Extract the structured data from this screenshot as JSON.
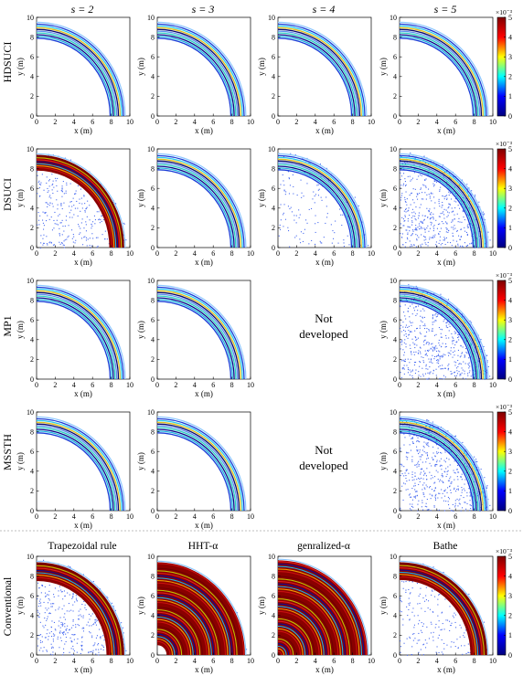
{
  "figure": {
    "col_headers": [
      "s = 2",
      "s = 3",
      "s = 4",
      "s = 5"
    ],
    "row_labels": [
      "HDSUCI",
      "DSUCI",
      "MP1",
      "MSSTH",
      "Conventional"
    ],
    "conventional_titles": [
      "Trapezoidal rule",
      "HHT-α",
      "genralized-α",
      "Bathe"
    ],
    "not_developed_text": [
      "Not",
      "developed"
    ],
    "xlabel": "x (m)",
    "ylabel": "y (m)",
    "xticks": [
      "0",
      "2",
      "4",
      "6",
      "8",
      "10"
    ],
    "yticks": [
      "0",
      "2",
      "4",
      "6",
      "8",
      "10"
    ],
    "colorbar": {
      "exponent": "×10⁻³",
      "ticks": [
        "0",
        "1",
        "2",
        "3",
        "4",
        "5"
      ],
      "range": [
        0,
        5
      ],
      "colormap": "jet",
      "stops": [
        "#00007f",
        "#0000ff",
        "#00ffff",
        "#ffff00",
        "#ff0000",
        "#7f0000"
      ]
    }
  },
  "chart_data": {
    "type": "heatmap",
    "description_axes": {
      "x_range": [
        0,
        10
      ],
      "y_range": [
        0,
        10
      ]
    },
    "panels": [
      {
        "row": 0,
        "col": 0,
        "ring": [
          7.8,
          9.4
        ],
        "noise": 0.0,
        "intensity": "low"
      },
      {
        "row": 0,
        "col": 1,
        "ring": [
          7.8,
          9.4
        ],
        "noise": 0.0,
        "intensity": "low"
      },
      {
        "row": 0,
        "col": 2,
        "ring": [
          7.8,
          9.4
        ],
        "noise": 0.0,
        "intensity": "low"
      },
      {
        "row": 0,
        "col": 3,
        "ring": [
          7.8,
          9.4
        ],
        "noise": 0.0,
        "intensity": "low"
      },
      {
        "row": 1,
        "col": 0,
        "ring": [
          7.8,
          9.4
        ],
        "noise": 0.55,
        "intensity": "high"
      },
      {
        "row": 1,
        "col": 1,
        "ring": [
          7.8,
          9.4
        ],
        "noise": 0.0,
        "intensity": "low"
      },
      {
        "row": 1,
        "col": 2,
        "ring": [
          7.8,
          9.4
        ],
        "noise": 0.25,
        "intensity": "low"
      },
      {
        "row": 1,
        "col": 3,
        "ring": [
          7.8,
          9.4
        ],
        "noise": 0.9,
        "intensity": "low"
      },
      {
        "row": 2,
        "col": 0,
        "ring": [
          7.8,
          9.4
        ],
        "noise": 0.0,
        "intensity": "low"
      },
      {
        "row": 2,
        "col": 1,
        "ring": [
          7.8,
          9.4
        ],
        "noise": 0.0,
        "intensity": "low"
      },
      {
        "row": 2,
        "col": 3,
        "ring": [
          7.8,
          9.4
        ],
        "noise": 0.9,
        "intensity": "low"
      },
      {
        "row": 3,
        "col": 0,
        "ring": [
          7.8,
          9.4
        ],
        "noise": 0.0,
        "intensity": "low"
      },
      {
        "row": 3,
        "col": 1,
        "ring": [
          7.8,
          9.4
        ],
        "noise": 0.0,
        "intensity": "low"
      },
      {
        "row": 3,
        "col": 3,
        "ring": [
          7.8,
          9.4
        ],
        "noise": 0.9,
        "intensity": "low"
      },
      {
        "row": 4,
        "col": 0,
        "ring": [
          7.5,
          9.4
        ],
        "noise": 0.7,
        "intensity": "high"
      },
      {
        "row": 4,
        "col": 1,
        "ring": [
          1.0,
          9.4
        ],
        "noise": 0.1,
        "intensity": "high"
      },
      {
        "row": 4,
        "col": 2,
        "ring": [
          0.0,
          9.6
        ],
        "noise": 0.0,
        "intensity": "high"
      },
      {
        "row": 4,
        "col": 3,
        "ring": [
          7.6,
          9.4
        ],
        "noise": 0.4,
        "intensity": "high"
      }
    ]
  }
}
